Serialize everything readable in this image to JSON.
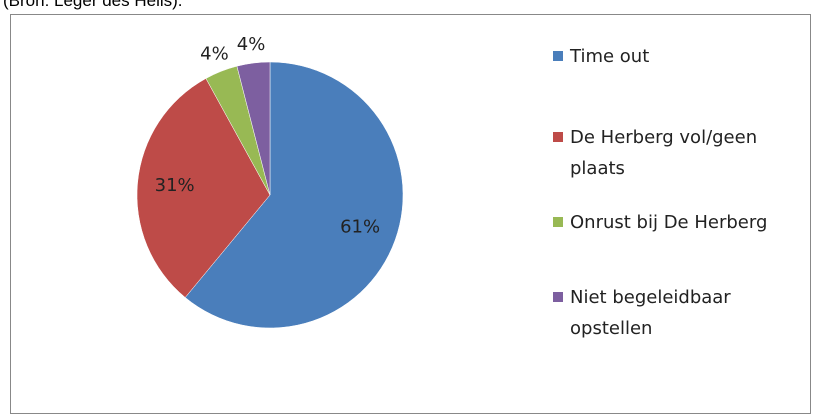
{
  "caption": "(Bron: Leger des Heils).",
  "chart_data": {
    "type": "pie",
    "categories": [
      "Time out",
      "De Herberg vol/geen plaats",
      "Onrust bij De Herberg",
      "Niet begeleidbaar opstellen"
    ],
    "values": [
      61,
      31,
      4,
      4
    ],
    "value_labels": [
      "61%",
      "31%",
      "4%",
      "4%"
    ],
    "colors": [
      "#4a7ebb",
      "#be4b48",
      "#98b954",
      "#7d5fa0"
    ],
    "legend": "right"
  }
}
